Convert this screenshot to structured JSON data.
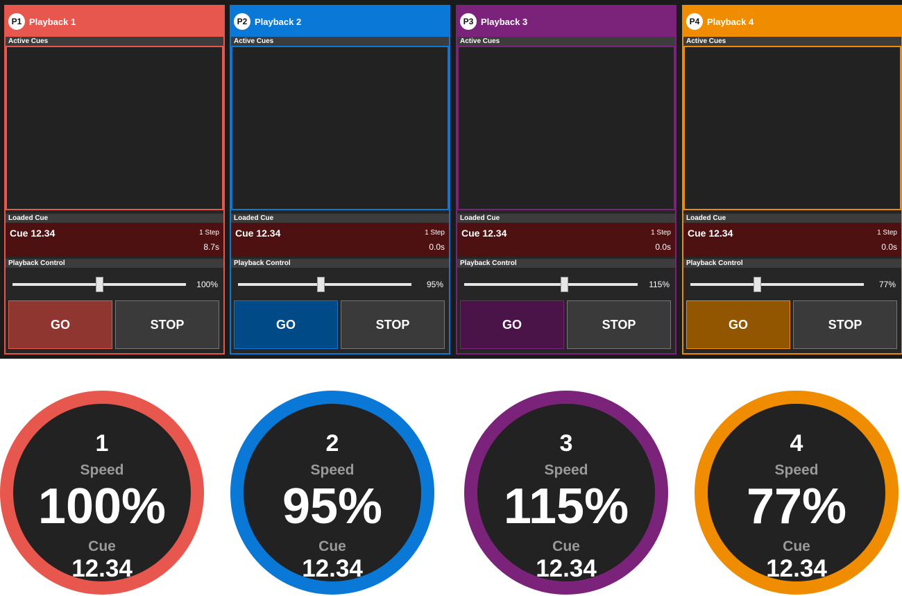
{
  "panels": [
    {
      "badge": "P1",
      "title": "Playback 1",
      "active_label": "Active Cues",
      "loaded_label": "Loaded Cue",
      "cue": "Cue 12.34",
      "steps": "1 Step",
      "time": "8.7s",
      "control_label": "Playback Control",
      "speed": "100%",
      "go": "GO",
      "stop": "STOP",
      "color": "#e8574d",
      "go_color": "#8f3631"
    },
    {
      "badge": "P2",
      "title": "Playback 2",
      "active_label": "Active Cues",
      "loaded_label": "Loaded Cue",
      "cue": "Cue 12.34",
      "steps": "1 Step",
      "time": "0.0s",
      "control_label": "Playback Control",
      "speed": "95%",
      "go": "GO",
      "stop": "STOP",
      "color": "#0a78d7",
      "go_color": "#004b87"
    },
    {
      "badge": "P3",
      "title": "Playback 3",
      "active_label": "Active Cues",
      "loaded_label": "Loaded Cue",
      "cue": "Cue 12.34",
      "steps": "1 Step",
      "time": "0.0s",
      "control_label": "Playback Control",
      "speed": "115%",
      "go": "GO",
      "stop": "STOP",
      "color": "#7b237a",
      "go_color": "#4a1448"
    },
    {
      "badge": "P4",
      "title": "Playback 4",
      "active_label": "Active Cues",
      "loaded_label": "Loaded Cue",
      "cue": "Cue 12.34",
      "steps": "1 Step",
      "time": "0.0s",
      "control_label": "Playback Control",
      "speed": "77%",
      "go": "GO",
      "stop": "STOP",
      "color": "#f08c00",
      "go_color": "#935600"
    }
  ],
  "dials": [
    {
      "number": "1",
      "speed_label": "Speed",
      "speed": "100%",
      "cue_label": "Cue",
      "cue": "12.34",
      "color": "#e8574d"
    },
    {
      "number": "2",
      "speed_label": "Speed",
      "speed": "95%",
      "cue_label": "Cue",
      "cue": "12.34",
      "color": "#0a78d7"
    },
    {
      "number": "3",
      "speed_label": "Speed",
      "speed": "115%",
      "cue_label": "Cue",
      "cue": "12.34",
      "color": "#7b237a"
    },
    {
      "number": "4",
      "speed_label": "Speed",
      "speed": "77%",
      "cue_label": "Cue",
      "cue": "12.34",
      "color": "#f08c00"
    }
  ]
}
